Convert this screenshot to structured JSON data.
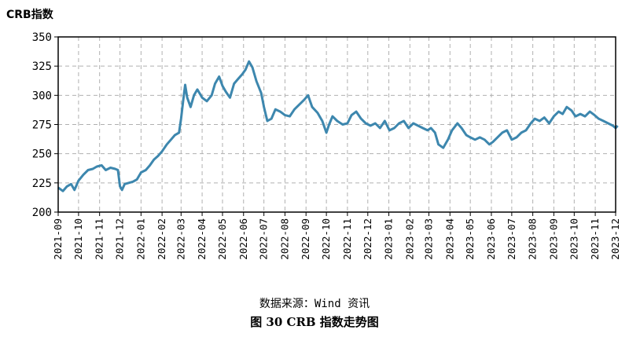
{
  "chart_data": {
    "type": "line",
    "ylabel": "CRB指数",
    "ylim": [
      200,
      350
    ],
    "yticks": [
      200,
      225,
      250,
      275,
      300,
      325,
      350
    ],
    "xticks": [
      "2021-09",
      "2021-10",
      "2021-11",
      "2021-12",
      "2022-01",
      "2022-02",
      "2022-03",
      "2022-04",
      "2022-05",
      "2022-06",
      "2022-07",
      "2022-08",
      "2022-09",
      "2022-10",
      "2022-11",
      "2022-12",
      "2023-01",
      "2023-02",
      "2023-03",
      "2023-04",
      "2023-05",
      "2023-06",
      "2023-07",
      "2023-08",
      "2023-09",
      "2023-10",
      "2023-11",
      "2023-12"
    ],
    "grid": true,
    "line_color": "#3d87ae",
    "series": [
      {
        "name": "",
        "points": [
          [
            "2021-09-01",
            221
          ],
          [
            "2021-09-08",
            218
          ],
          [
            "2021-09-14",
            222
          ],
          [
            "2021-09-20",
            224
          ],
          [
            "2021-09-25",
            219
          ],
          [
            "2021-10-01",
            227
          ],
          [
            "2021-10-08",
            232
          ],
          [
            "2021-10-15",
            236
          ],
          [
            "2021-10-22",
            237
          ],
          [
            "2021-10-28",
            239
          ],
          [
            "2021-11-04",
            240
          ],
          [
            "2021-11-10",
            236
          ],
          [
            "2021-11-17",
            238
          ],
          [
            "2021-11-24",
            237
          ],
          [
            "2021-11-28",
            236
          ],
          [
            "2021-12-01",
            222
          ],
          [
            "2021-12-04",
            219
          ],
          [
            "2021-12-08",
            224
          ],
          [
            "2021-12-14",
            225
          ],
          [
            "2021-12-20",
            226
          ],
          [
            "2021-12-26",
            228
          ],
          [
            "2022-01-01",
            234
          ],
          [
            "2022-01-08",
            236
          ],
          [
            "2022-01-14",
            240
          ],
          [
            "2022-01-20",
            245
          ],
          [
            "2022-01-26",
            248
          ],
          [
            "2022-02-01",
            252
          ],
          [
            "2022-02-08",
            258
          ],
          [
            "2022-02-14",
            262
          ],
          [
            "2022-02-20",
            266
          ],
          [
            "2022-02-26",
            268
          ],
          [
            "2022-03-01",
            280
          ],
          [
            "2022-03-04",
            295
          ],
          [
            "2022-03-07",
            309
          ],
          [
            "2022-03-10",
            298
          ],
          [
            "2022-03-15",
            290
          ],
          [
            "2022-03-20",
            300
          ],
          [
            "2022-03-25",
            305
          ],
          [
            "2022-04-01",
            298
          ],
          [
            "2022-04-08",
            295
          ],
          [
            "2022-04-15",
            300
          ],
          [
            "2022-04-20",
            310
          ],
          [
            "2022-04-26",
            316
          ],
          [
            "2022-05-01",
            308
          ],
          [
            "2022-05-06",
            303
          ],
          [
            "2022-05-12",
            298
          ],
          [
            "2022-05-18",
            310
          ],
          [
            "2022-05-24",
            314
          ],
          [
            "2022-05-30",
            318
          ],
          [
            "2022-06-04",
            322
          ],
          [
            "2022-06-09",
            329
          ],
          [
            "2022-06-14",
            324
          ],
          [
            "2022-06-20",
            312
          ],
          [
            "2022-06-27",
            302
          ],
          [
            "2022-07-01",
            290
          ],
          [
            "2022-07-06",
            278
          ],
          [
            "2022-07-12",
            280
          ],
          [
            "2022-07-18",
            288
          ],
          [
            "2022-07-25",
            286
          ],
          [
            "2022-08-01",
            283
          ],
          [
            "2022-08-08",
            282
          ],
          [
            "2022-08-15",
            288
          ],
          [
            "2022-08-22",
            292
          ],
          [
            "2022-08-29",
            296
          ],
          [
            "2022-09-04",
            300
          ],
          [
            "2022-09-10",
            290
          ],
          [
            "2022-09-18",
            285
          ],
          [
            "2022-09-25",
            278
          ],
          [
            "2022-10-01",
            268
          ],
          [
            "2022-10-05",
            275
          ],
          [
            "2022-10-10",
            282
          ],
          [
            "2022-10-17",
            278
          ],
          [
            "2022-10-25",
            275
          ],
          [
            "2022-11-01",
            276
          ],
          [
            "2022-11-07",
            283
          ],
          [
            "2022-11-14",
            286
          ],
          [
            "2022-11-21",
            280
          ],
          [
            "2022-11-28",
            276
          ],
          [
            "2022-12-05",
            274
          ],
          [
            "2022-12-12",
            276
          ],
          [
            "2022-12-19",
            272
          ],
          [
            "2022-12-26",
            278
          ],
          [
            "2023-01-02",
            270
          ],
          [
            "2023-01-09",
            272
          ],
          [
            "2023-01-16",
            276
          ],
          [
            "2023-01-23",
            278
          ],
          [
            "2023-01-30",
            272
          ],
          [
            "2023-02-06",
            276
          ],
          [
            "2023-02-13",
            274
          ],
          [
            "2023-02-20",
            272
          ],
          [
            "2023-02-27",
            270
          ],
          [
            "2023-03-04",
            272
          ],
          [
            "2023-03-10",
            268
          ],
          [
            "2023-03-15",
            258
          ],
          [
            "2023-03-22",
            255
          ],
          [
            "2023-03-29",
            262
          ],
          [
            "2023-04-04",
            270
          ],
          [
            "2023-04-12",
            276
          ],
          [
            "2023-04-18",
            272
          ],
          [
            "2023-04-25",
            266
          ],
          [
            "2023-05-01",
            264
          ],
          [
            "2023-05-08",
            262
          ],
          [
            "2023-05-15",
            264
          ],
          [
            "2023-05-22",
            262
          ],
          [
            "2023-05-29",
            258
          ],
          [
            "2023-06-03",
            260
          ],
          [
            "2023-06-10",
            264
          ],
          [
            "2023-06-17",
            268
          ],
          [
            "2023-06-24",
            270
          ],
          [
            "2023-07-01",
            262
          ],
          [
            "2023-07-08",
            264
          ],
          [
            "2023-07-15",
            268
          ],
          [
            "2023-07-22",
            270
          ],
          [
            "2023-07-29",
            276
          ],
          [
            "2023-08-04",
            280
          ],
          [
            "2023-08-11",
            278
          ],
          [
            "2023-08-18",
            281
          ],
          [
            "2023-08-25",
            276
          ],
          [
            "2023-09-01",
            282
          ],
          [
            "2023-09-08",
            286
          ],
          [
            "2023-09-14",
            284
          ],
          [
            "2023-09-20",
            290
          ],
          [
            "2023-09-27",
            287
          ],
          [
            "2023-10-03",
            282
          ],
          [
            "2023-10-10",
            284
          ],
          [
            "2023-10-17",
            282
          ],
          [
            "2023-10-24",
            286
          ],
          [
            "2023-10-31",
            283
          ],
          [
            "2023-11-06",
            280
          ],
          [
            "2023-11-13",
            278
          ],
          [
            "2023-11-20",
            276
          ],
          [
            "2023-11-27",
            274
          ],
          [
            "2023-12-01",
            272
          ],
          [
            "2023-12-04",
            274
          ]
        ]
      }
    ]
  },
  "source_text": "数据来源：Wind 资讯",
  "caption": "图 30  CRB 指数走势图"
}
